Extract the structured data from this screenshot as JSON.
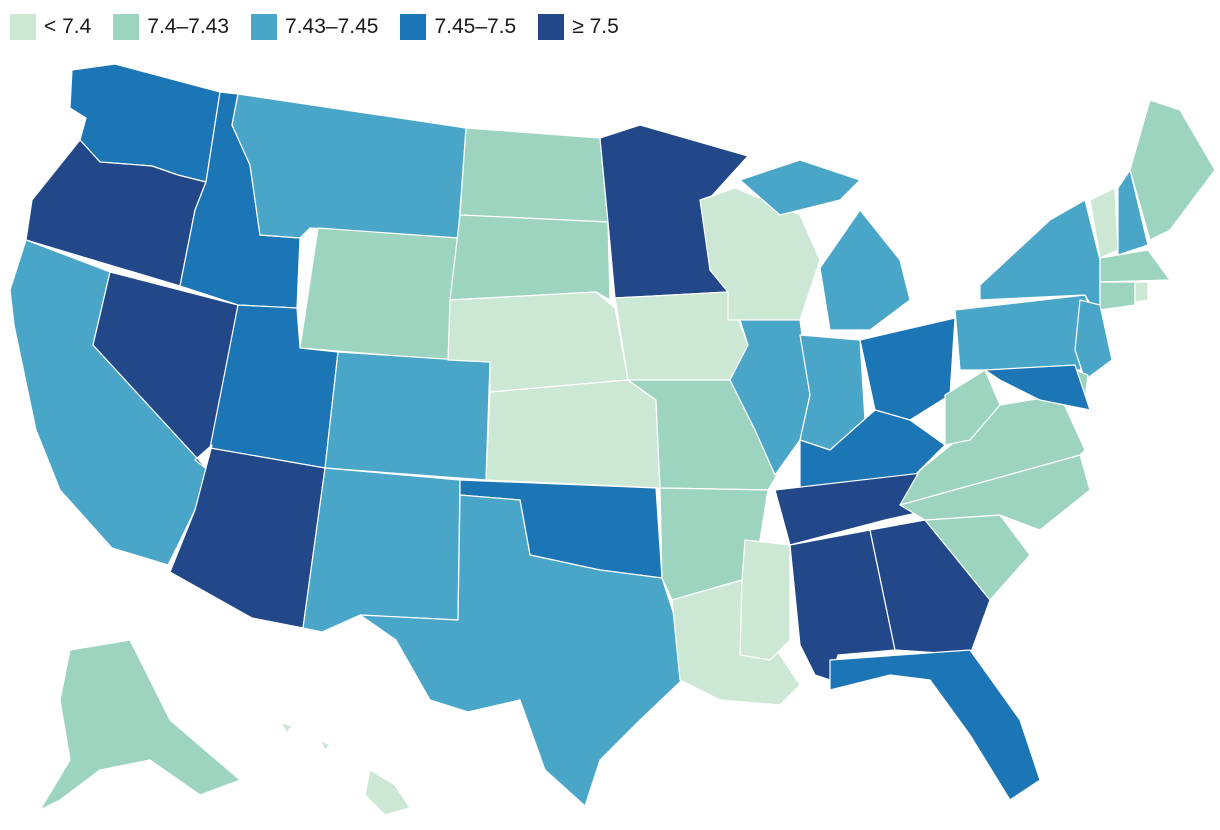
{
  "legend": [
    {
      "label": "< 7.4",
      "color": "#cce8d5"
    },
    {
      "label": "7.4–7.43",
      "color": "#9dd4c0"
    },
    {
      "label": "7.43–7.45",
      "color": "#4aa6c9"
    },
    {
      "label": "7.45–7.5",
      "color": "#1c75b5"
    },
    {
      "label": "≥ 7.5",
      "color": "#23488a"
    }
  ],
  "states": [
    {
      "id": "WA",
      "bin": 3
    },
    {
      "id": "OR",
      "bin": 4
    },
    {
      "id": "CA",
      "bin": 2
    },
    {
      "id": "NV",
      "bin": 4
    },
    {
      "id": "ID",
      "bin": 3
    },
    {
      "id": "MT",
      "bin": 2
    },
    {
      "id": "WY",
      "bin": 1
    },
    {
      "id": "UT",
      "bin": 3
    },
    {
      "id": "AZ",
      "bin": 4
    },
    {
      "id": "CO",
      "bin": 2
    },
    {
      "id": "NM",
      "bin": 2
    },
    {
      "id": "ND",
      "bin": 1
    },
    {
      "id": "SD",
      "bin": 1
    },
    {
      "id": "NE",
      "bin": 0
    },
    {
      "id": "KS",
      "bin": 0
    },
    {
      "id": "OK",
      "bin": 3
    },
    {
      "id": "TX",
      "bin": 2
    },
    {
      "id": "MN",
      "bin": 4
    },
    {
      "id": "IA",
      "bin": 0
    },
    {
      "id": "MO",
      "bin": 1
    },
    {
      "id": "AR",
      "bin": 1
    },
    {
      "id": "LA",
      "bin": 0
    },
    {
      "id": "WI",
      "bin": 0
    },
    {
      "id": "IL",
      "bin": 2
    },
    {
      "id": "MI",
      "bin": 2
    },
    {
      "id": "IN",
      "bin": 2
    },
    {
      "id": "OH",
      "bin": 3
    },
    {
      "id": "KY",
      "bin": 3
    },
    {
      "id": "TN",
      "bin": 4
    },
    {
      "id": "MS",
      "bin": 0
    },
    {
      "id": "AL",
      "bin": 4
    },
    {
      "id": "GA",
      "bin": 4
    },
    {
      "id": "FL",
      "bin": 3
    },
    {
      "id": "SC",
      "bin": 1
    },
    {
      "id": "NC",
      "bin": 1
    },
    {
      "id": "VA",
      "bin": 1
    },
    {
      "id": "WV",
      "bin": 1
    },
    {
      "id": "PA",
      "bin": 2
    },
    {
      "id": "NY",
      "bin": 2
    },
    {
      "id": "VT",
      "bin": 0
    },
    {
      "id": "NH",
      "bin": 2
    },
    {
      "id": "ME",
      "bin": 1
    },
    {
      "id": "MA",
      "bin": 1
    },
    {
      "id": "CT",
      "bin": 1
    },
    {
      "id": "RI",
      "bin": 0
    },
    {
      "id": "NJ",
      "bin": 2
    },
    {
      "id": "DE",
      "bin": 1
    },
    {
      "id": "MD",
      "bin": 3
    },
    {
      "id": "AK",
      "bin": 1
    },
    {
      "id": "HI",
      "bin": 0
    }
  ]
}
